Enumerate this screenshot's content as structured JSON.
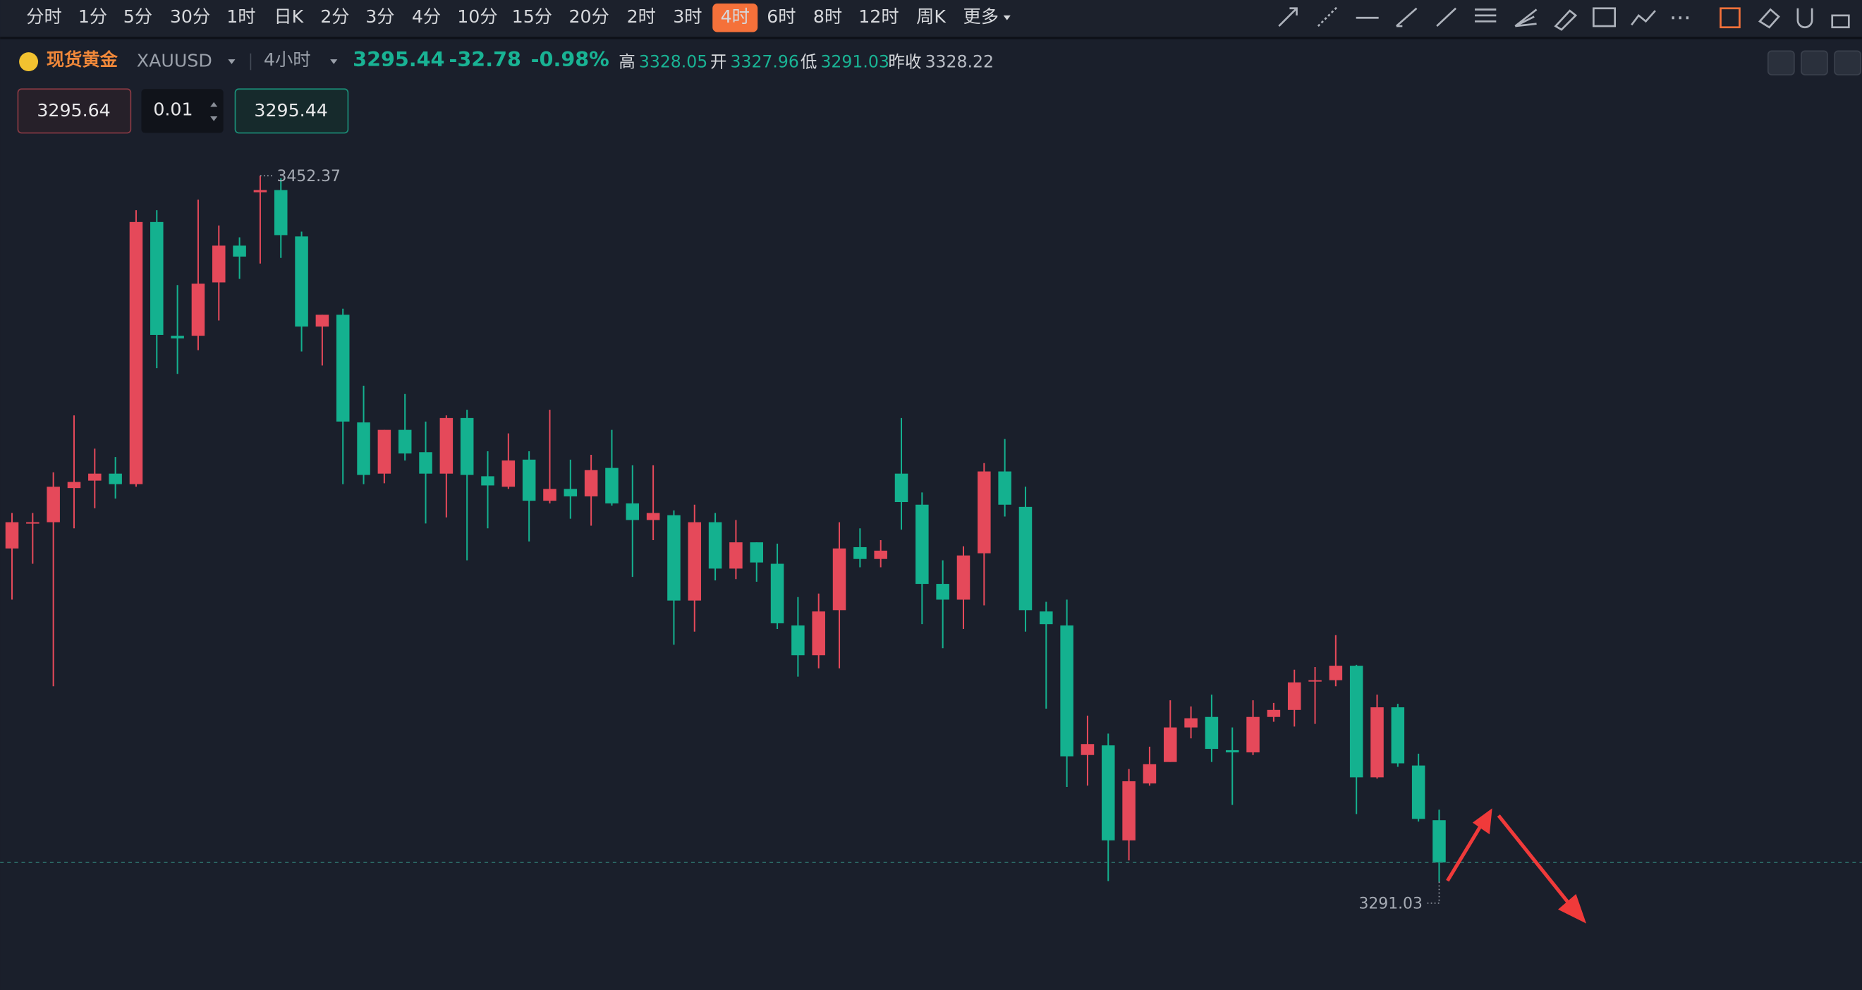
{
  "toolbar": {
    "intervals": [
      "分时",
      "1分",
      "5分",
      "30分",
      "1时",
      "日K",
      "2分",
      "3分",
      "4分",
      "10分",
      "15分",
      "20分",
      "2时",
      "3时",
      "4时",
      "6时",
      "8时",
      "12时",
      "周K",
      "更多"
    ],
    "active_interval": "4时"
  },
  "header": {
    "symbol": "现货黄金",
    "code": "XAUUSD",
    "period": "4小时",
    "price": "3295.44",
    "change": "-32.78",
    "change_pct": "-0.98%",
    "stats": [
      {
        "label": "高",
        "value": "3328.05"
      },
      {
        "label": "开",
        "value": "3327.96"
      },
      {
        "label": "低",
        "value": "3291.03"
      },
      {
        "label": "昨收",
        "value": "3328.22"
      }
    ]
  },
  "order": {
    "sell": "3295.64",
    "lot": "0.01",
    "buy": "3295.44"
  },
  "chart_data": {
    "type": "candlestick",
    "up_color": "#e5495a",
    "down_color": "#14b18f",
    "ylim": [
      3266.3,
      3473.0
    ],
    "open": [
      3367.2,
      3372.9,
      3373.2,
      3381.0,
      3382.7,
      3384.3,
      3381.9,
      3441.8,
      3415.8,
      3415.8,
      3428.0,
      3436.4,
      3448.6,
      3449.1,
      3438.5,
      3417.9,
      3420.6,
      3396.0,
      3384.3,
      3394.3,
      3389.2,
      3384.3,
      3397.0,
      3383.7,
      3381.3,
      3387.5,
      3378.1,
      3380.8,
      3379.1,
      3385.6,
      3377.5,
      3373.7,
      3374.8,
      3355.3,
      3373.2,
      3362.6,
      3368.6,
      3363.7,
      3349.6,
      3342.8,
      3353.1,
      3367.5,
      3364.8,
      3384.3,
      3377.2,
      3359.1,
      3355.5,
      3366.1,
      3384.8,
      3376.7,
      3352.8,
      3349.6,
      3320.0,
      3322.2,
      3300.5,
      3313.5,
      3318.4,
      3326.3,
      3328.7,
      3321.1,
      3320.6,
      3328.7,
      3330.3,
      3336.8,
      3337.1,
      3340.4,
      3314.9,
      3330.9,
      3317.6,
      3305.1
    ],
    "high": [
      3375.3,
      3375.3,
      3384.6,
      3397.6,
      3390.0,
      3388.1,
      3444.5,
      3444.5,
      3427.4,
      3446.9,
      3441.0,
      3438.3,
      3452.37,
      3451.8,
      3439.6,
      3420.6,
      3422.0,
      3404.4,
      3394.3,
      3402.5,
      3396.2,
      3397.6,
      3398.9,
      3389.4,
      3393.5,
      3389.4,
      3398.9,
      3387.5,
      3388.6,
      3394.3,
      3386.2,
      3386.2,
      3375.9,
      3377.2,
      3375.3,
      3373.7,
      3368.6,
      3368.3,
      3356.1,
      3356.9,
      3373.2,
      3371.8,
      3369.1,
      3397.0,
      3380.0,
      3364.5,
      3367.7,
      3386.7,
      3392.2,
      3381.3,
      3355.0,
      3355.5,
      3329.0,
      3324.9,
      3316.8,
      3321.9,
      3332.5,
      3331.1,
      3333.8,
      3326.3,
      3332.5,
      3331.9,
      3339.5,
      3340.1,
      3347.4,
      3340.6,
      3333.8,
      3331.7,
      3320.3,
      3307.5
    ],
    "low": [
      3355.5,
      3363.7,
      3335.7,
      3371.8,
      3376.4,
      3378.6,
      3381.3,
      3408.4,
      3407.1,
      3412.5,
      3419.3,
      3428.8,
      3432.3,
      3433.6,
      3412.2,
      3409.0,
      3381.9,
      3381.9,
      3382.1,
      3387.3,
      3372.9,
      3374.3,
      3364.5,
      3371.8,
      3380.8,
      3368.8,
      3377.5,
      3374.0,
      3372.4,
      3377.0,
      3360.7,
      3369.1,
      3345.2,
      3348.2,
      3359.9,
      3360.2,
      3359.6,
      3348.8,
      3337.9,
      3339.8,
      3339.8,
      3362.9,
      3362.9,
      3371.5,
      3349.9,
      3344.4,
      3348.8,
      3354.2,
      3374.5,
      3348.2,
      3330.6,
      3312.7,
      3313.0,
      3291.2,
      3295.9,
      3313.0,
      3318.4,
      3323.8,
      3318.4,
      3308.6,
      3320.0,
      3327.6,
      3326.5,
      3327.1,
      3335.7,
      3306.5,
      3314.6,
      3317.3,
      3304.8,
      3291.03
    ],
    "close": [
      3373.2,
      3373.2,
      3381.3,
      3382.4,
      3384.3,
      3381.9,
      3441.8,
      3416.0,
      3415.2,
      3427.7,
      3436.4,
      3433.9,
      3449.1,
      3438.8,
      3417.9,
      3420.6,
      3396.2,
      3384.0,
      3394.3,
      3388.9,
      3384.3,
      3397.0,
      3384.0,
      3381.6,
      3387.3,
      3378.1,
      3380.8,
      3379.1,
      3385.1,
      3377.5,
      3373.7,
      3375.3,
      3355.3,
      3373.2,
      3362.6,
      3368.6,
      3364.0,
      3350.1,
      3342.8,
      3352.8,
      3367.2,
      3364.8,
      3366.7,
      3377.8,
      3359.1,
      3355.5,
      3365.6,
      3384.8,
      3377.2,
      3353.1,
      3349.9,
      3319.7,
      3322.5,
      3300.5,
      3314.0,
      3317.9,
      3326.3,
      3328.4,
      3321.4,
      3320.6,
      3328.7,
      3330.3,
      3336.6,
      3337.1,
      3340.4,
      3314.9,
      3330.9,
      3318.1,
      3305.4,
      3295.44
    ]
  }
}
